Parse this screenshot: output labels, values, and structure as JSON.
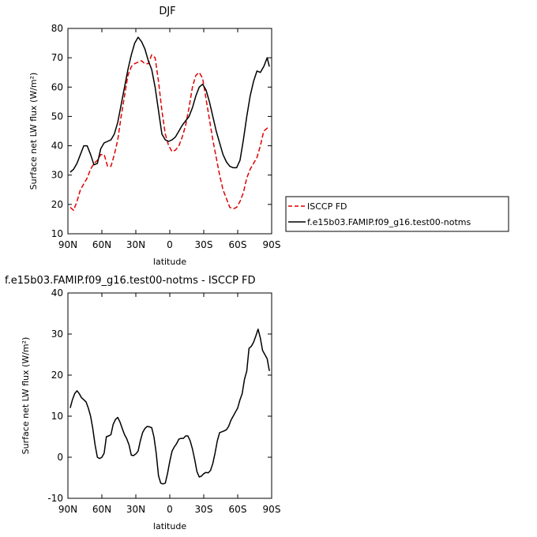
{
  "chart_data": [
    {
      "type": "line",
      "title": "DJF",
      "xlabel": "latitude",
      "ylabel": "Surface net LW flux (W/m²)",
      "ylim": [
        10,
        80
      ],
      "yticks": [
        10,
        20,
        30,
        40,
        50,
        60,
        70,
        80
      ],
      "xlim": [
        90,
        -90
      ],
      "xticks": [
        90,
        60,
        30,
        0,
        -30,
        -60,
        -90
      ],
      "xtick_labels": [
        "90N",
        "60N",
        "30N",
        "0",
        "30S",
        "60S",
        "90S"
      ],
      "legend": "outside-right",
      "series": [
        {
          "name": "ISCCP FD",
          "color": "#e00000",
          "dash": "dashed",
          "x": [
            88,
            85,
            82,
            79,
            76,
            73,
            70,
            67,
            64,
            61,
            58,
            55,
            52,
            49,
            46,
            43,
            40,
            37,
            34,
            31,
            28,
            25,
            22,
            19,
            16,
            13,
            10,
            7,
            4,
            1,
            -2,
            -5,
            -8,
            -11,
            -14,
            -17,
            -20,
            -23,
            -26,
            -29,
            -32,
            -35,
            -38,
            -41,
            -44,
            -47,
            -50,
            -53,
            -56,
            -59,
            -62,
            -65,
            -68,
            -71,
            -74,
            -77,
            -80,
            -83,
            -86,
            -88
          ],
          "y": [
            19,
            18,
            21,
            25,
            27,
            29,
            32,
            34,
            35,
            37,
            37,
            33,
            33,
            37,
            42,
            50,
            57,
            64,
            67,
            68,
            68.5,
            69,
            68,
            68,
            71,
            70,
            62,
            52,
            44,
            40,
            38,
            38.5,
            40,
            43,
            47,
            53,
            60,
            64,
            65,
            63,
            56,
            49,
            42,
            36,
            30,
            25,
            22,
            19,
            18.5,
            19,
            21,
            24,
            29,
            32,
            34,
            36,
            40,
            45,
            46,
            46
          ]
        },
        {
          "name": "f.e15b03.FAMIP.f09_g16.test00-notms",
          "color": "#000000",
          "dash": "solid",
          "x": [
            88,
            85,
            82,
            79,
            76,
            73,
            70,
            67,
            64,
            61,
            58,
            55,
            52,
            49,
            46,
            43,
            40,
            37,
            34,
            31,
            28,
            25,
            22,
            19,
            16,
            13,
            10,
            7,
            4,
            1,
            -2,
            -5,
            -8,
            -11,
            -14,
            -17,
            -20,
            -23,
            -26,
            -29,
            -32,
            -35,
            -38,
            -41,
            -44,
            -47,
            -50,
            -53,
            -56,
            -59,
            -62,
            -65,
            -68,
            -71,
            -74,
            -77,
            -80,
            -83,
            -86,
            -88
          ],
          "y": [
            31,
            32,
            34,
            37,
            40,
            40,
            37,
            33.5,
            34,
            39,
            41,
            41.5,
            42,
            44,
            48,
            54,
            60,
            66,
            71,
            75,
            77,
            75.5,
            73,
            69,
            66,
            60,
            52,
            44,
            42,
            41.5,
            42,
            43,
            45,
            47,
            48.5,
            50,
            53,
            57,
            60,
            61,
            59,
            55,
            50,
            45,
            41,
            37,
            34.5,
            33,
            32.5,
            32.5,
            35,
            42,
            50,
            57,
            62,
            65.5,
            65,
            67,
            70,
            67
          ]
        }
      ]
    },
    {
      "type": "line",
      "title": "f.e15b03.FAMIP.f09_g16.test00-notms - ISCCP FD",
      "xlabel": "latitude",
      "ylabel": "Surface net LW flux (W/m²)",
      "ylim": [
        -10,
        40
      ],
      "yticks": [
        -10,
        0,
        10,
        20,
        30,
        40
      ],
      "xlim": [
        90,
        -90
      ],
      "xticks": [
        90,
        60,
        30,
        0,
        -30,
        -60,
        -90
      ],
      "xtick_labels": [
        "90N",
        "60N",
        "30N",
        "0",
        "30S",
        "60S",
        "90S"
      ],
      "series": [
        {
          "color": "#000000",
          "dash": "solid",
          "x": [
            88,
            86,
            84,
            82,
            80,
            78,
            76,
            74,
            72,
            70,
            68,
            66,
            64,
            62,
            60,
            58,
            56,
            54,
            52,
            50,
            48,
            46,
            44,
            42,
            40,
            38,
            36,
            34,
            32,
            30,
            28,
            26,
            24,
            22,
            20,
            18,
            16,
            14,
            12,
            10,
            8,
            6,
            4,
            2,
            0,
            -2,
            -4,
            -6,
            -8,
            -10,
            -12,
            -14,
            -16,
            -18,
            -20,
            -22,
            -24,
            -26,
            -28,
            -30,
            -32,
            -34,
            -36,
            -38,
            -40,
            -42,
            -44,
            -46,
            -48,
            -50,
            -52,
            -54,
            -56,
            -58,
            -60,
            -62,
            -64,
            -66,
            -68,
            -70,
            -72,
            -74,
            -76,
            -78,
            -80,
            -82,
            -84,
            -86,
            -88
          ],
          "y": [
            12,
            14,
            15.5,
            16.2,
            15.5,
            14.5,
            14,
            13.5,
            12,
            10,
            7,
            3,
            0,
            -0.3,
            0,
            1,
            5,
            5.2,
            5.5,
            8,
            9.2,
            9.7,
            8.6,
            7,
            5.5,
            4.5,
            3,
            0.5,
            0.4,
            0.8,
            1.5,
            4,
            6,
            7,
            7.5,
            7.4,
            7.2,
            5,
            1,
            -4.5,
            -6.3,
            -6.5,
            -6.3,
            -4,
            -1,
            1.5,
            2.5,
            3.3,
            4.4,
            4.6,
            4.6,
            5.2,
            5.2,
            4,
            2,
            -0.5,
            -3.5,
            -4.8,
            -4.6,
            -4,
            -3.7,
            -3.8,
            -3.2,
            -1.5,
            1,
            4,
            6,
            6.2,
            6.4,
            6.7,
            7.5,
            9,
            10,
            11,
            12,
            14,
            15.5,
            19,
            21,
            26.5,
            27,
            28,
            29.5,
            31.2,
            29,
            26,
            25,
            24,
            21
          ]
        }
      ]
    }
  ]
}
